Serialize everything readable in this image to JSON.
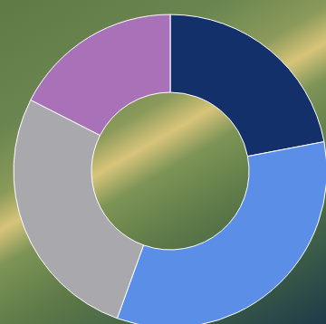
{
  "chart_data": {
    "type": "pie",
    "values": [
      22,
      33.5,
      27,
      17.5
    ],
    "colors": [
      "#14306b",
      "#5b8ee6",
      "#a8a8ad",
      "#a972b8"
    ]
  }
}
